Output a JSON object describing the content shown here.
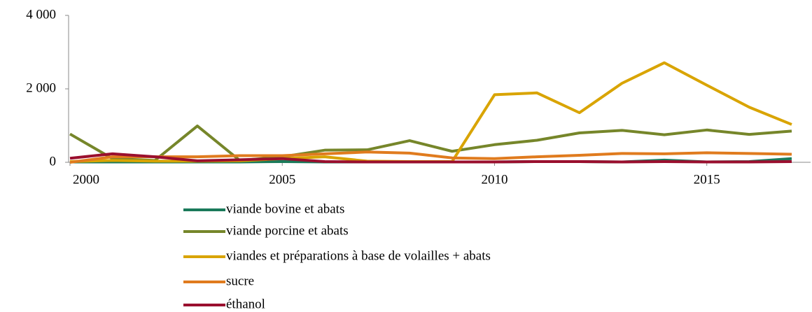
{
  "chart_data": {
    "type": "line",
    "x": [
      2000,
      2001,
      2002,
      2003,
      2004,
      2005,
      2006,
      2007,
      2008,
      2009,
      2010,
      2011,
      2012,
      2013,
      2014,
      2015,
      2016,
      2017
    ],
    "series": [
      {
        "name": "viande bovine et abats",
        "color": "#1a7a5a",
        "values": [
          10,
          10,
          10,
          10,
          10,
          20,
          10,
          10,
          10,
          10,
          10,
          20,
          20,
          10,
          60,
          10,
          20,
          100
        ]
      },
      {
        "name": "viande porcine et abats",
        "color": "#76862a",
        "values": [
          770,
          100,
          50,
          990,
          50,
          150,
          330,
          340,
          590,
          300,
          480,
          600,
          800,
          870,
          750,
          880,
          760,
          850
        ]
      },
      {
        "name": "viandes et préparations à base de volailles + abats",
        "color": "#d9a400",
        "values": [
          20,
          50,
          30,
          30,
          40,
          100,
          150,
          30,
          20,
          20,
          1840,
          1890,
          1350,
          2150,
          2710,
          2100,
          1500,
          1030
        ]
      },
      {
        "name": "sucre",
        "color": "#e07b1e",
        "values": [
          0,
          150,
          150,
          150,
          180,
          180,
          230,
          280,
          250,
          120,
          100,
          150,
          190,
          240,
          230,
          260,
          240,
          220
        ]
      },
      {
        "name": "éthanol",
        "color": "#9a0f2e",
        "values": [
          110,
          230,
          150,
          40,
          70,
          100,
          20,
          10,
          10,
          10,
          10,
          20,
          20,
          10,
          20,
          10,
          10,
          20
        ]
      }
    ],
    "xlim": [
      2000,
      2017
    ],
    "xticks": [
      2000,
      2005,
      2010,
      2015
    ],
    "ylim": [
      0,
      4000
    ],
    "yticks": [
      0,
      {
        "value": 2000,
        "label": "2 000"
      },
      {
        "value": 4000,
        "label": "4 000"
      }
    ]
  }
}
